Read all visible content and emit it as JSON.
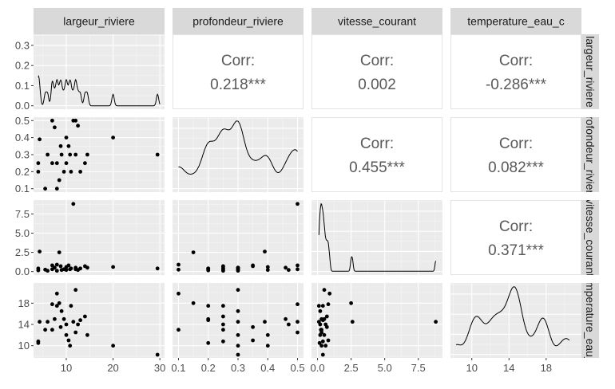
{
  "chart_data": {
    "type": "scatter-matrix",
    "variables": [
      "largeur_riviere",
      "profondeur_riviere",
      "vitesse_courant",
      "temperature_eau_c"
    ],
    "right_strip_labels": [
      "largeur_riviere",
      "profondeur_riviere",
      "vitesse_courant",
      "temperature_eau_c"
    ],
    "axes": {
      "largeur_riviere": {
        "range": [
          3,
          31
        ],
        "ticks": [
          10,
          20,
          30
        ],
        "tick_labels": [
          "10",
          "20",
          "30"
        ]
      },
      "profondeur_riviere": {
        "range": [
          0.08,
          0.52
        ],
        "ticks": [
          0.1,
          0.2,
          0.3,
          0.4,
          0.5
        ],
        "tick_labels": [
          "0.1",
          "0.2",
          "0.3",
          "0.4",
          "0.5"
        ]
      },
      "vitesse_courant": {
        "range": [
          -0.45,
          9.3
        ],
        "ticks": [
          0.0,
          2.5,
          5.0,
          7.5
        ],
        "tick_labels": [
          "0.0",
          "2.5",
          "5.0",
          "7.5"
        ]
      },
      "temperature_eau_c": {
        "range": [
          7.7,
          21.8
        ],
        "ticks": [
          10,
          14,
          18
        ],
        "tick_labels": [
          "10",
          "14",
          "18"
        ]
      }
    },
    "density_y_axis": {
      "range": [
        -0.017,
        0.355
      ],
      "ticks": [
        0.0,
        0.1,
        0.2,
        0.3
      ],
      "tick_labels": [
        "0.0",
        "0.1",
        "0.2",
        "0.3"
      ]
    },
    "correlations": [
      {
        "row": 0,
        "col": 1,
        "label": "Corr:",
        "value": "0.218***"
      },
      {
        "row": 0,
        "col": 2,
        "label": "Corr:",
        "value": "0.002"
      },
      {
        "row": 0,
        "col": 3,
        "label": "Corr:",
        "value": "-0.286***"
      },
      {
        "row": 1,
        "col": 2,
        "label": "Corr:",
        "value": "0.455***"
      },
      {
        "row": 1,
        "col": 3,
        "label": "Corr:",
        "value": "0.082***"
      },
      {
        "row": 2,
        "col": 3,
        "label": "Corr:",
        "value": "0.371***"
      }
    ],
    "observations": [
      [
        4,
        0.25,
        0.4,
        10.8
      ],
      [
        4,
        0.2,
        0.15,
        10.5
      ],
      [
        4.3,
        0.39,
        2.6,
        14.5
      ],
      [
        5.5,
        0.1,
        0.25,
        13.0
      ],
      [
        6,
        0.3,
        0.1,
        14.5
      ],
      [
        7,
        0.5,
        0.8,
        17.8
      ],
      [
        7,
        0.25,
        0.3,
        13.0
      ],
      [
        7.5,
        0.46,
        0.5,
        15.0
      ],
      [
        8,
        0.1,
        0.9,
        19.8
      ],
      [
        8,
        0.25,
        0.1,
        17.5
      ],
      [
        8.5,
        0.15,
        2.5,
        18.0
      ],
      [
        8.8,
        0.35,
        0.7,
        13.5
      ],
      [
        9,
        0.3,
        0.2,
        16.5
      ],
      [
        9.5,
        0.2,
        0.3,
        15.0
      ],
      [
        10,
        0.25,
        0.6,
        14.0
      ],
      [
        10,
        0.4,
        0.2,
        12.0
      ],
      [
        10.5,
        0.35,
        0.8,
        11.0
      ],
      [
        10.8,
        0.3,
        0.3,
        10.0
      ],
      [
        11,
        0.2,
        0.4,
        17.5
      ],
      [
        11.5,
        0.5,
        8.8,
        14.5
      ],
      [
        12,
        0.3,
        0.5,
        20.5
      ],
      [
        12,
        0.5,
        0.3,
        12.5
      ],
      [
        12.5,
        0.47,
        0.2,
        14.0
      ],
      [
        13,
        0.2,
        0.4,
        14.8
      ],
      [
        14,
        0.25,
        0.7,
        15.5
      ],
      [
        14.5,
        0.3,
        0.5,
        12.0
      ],
      [
        20,
        0.4,
        0.6,
        10.0
      ],
      [
        29.5,
        0.3,
        0.4,
        8.3
      ]
    ]
  }
}
